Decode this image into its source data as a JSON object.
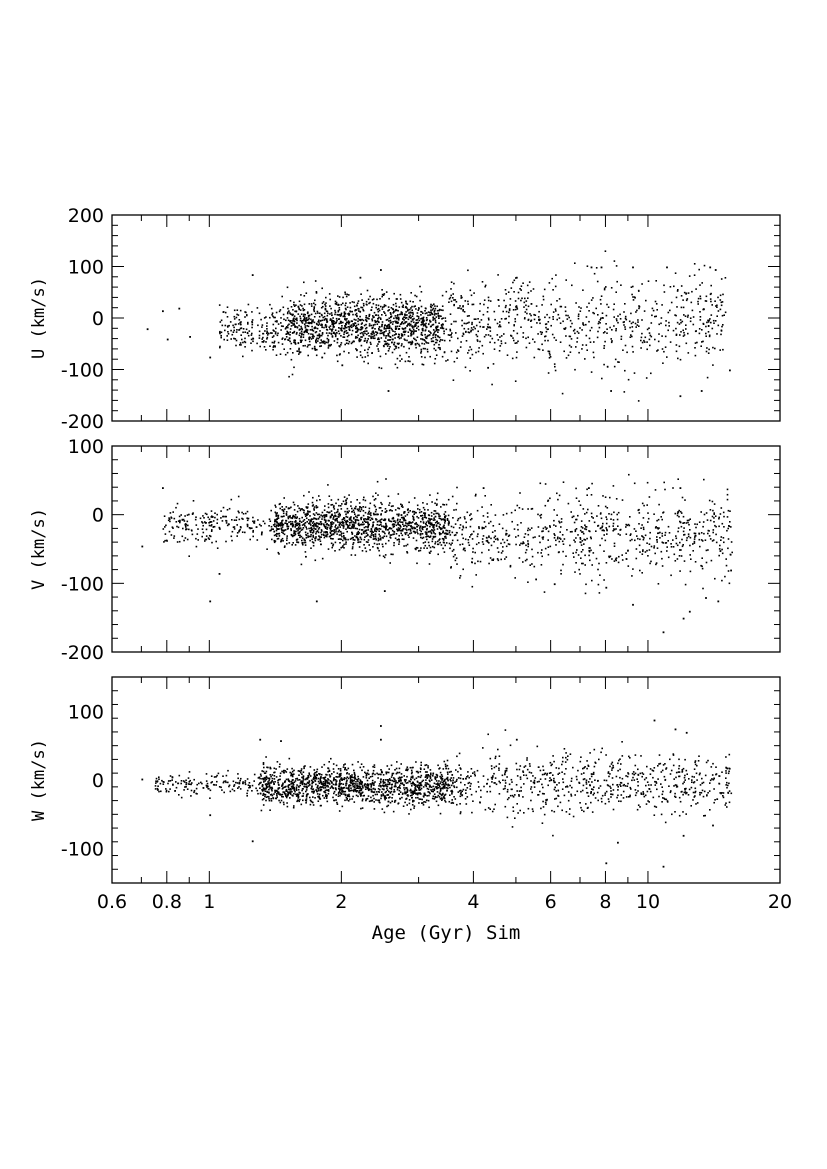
{
  "chart_data": {
    "type": "scatter",
    "xscale": "log",
    "xlabel": "Age (Gyr) Sim",
    "xlim": [
      0.6,
      20
    ],
    "xticks": [
      "0.6",
      "0.8",
      "1",
      "2",
      "4",
      "6",
      "8",
      "10",
      "20"
    ],
    "panels": [
      {
        "ylabel": "U (km/s)",
        "ylim": [
          -200,
          200
        ],
        "yticks": [
          "200",
          "100",
          "0",
          "-100",
          "-200"
        ],
        "clusters": [
          {
            "x_range": [
              1.05,
              1.5
            ],
            "y_mean": -20,
            "y_sd": 22,
            "n": 200
          },
          {
            "x_range": [
              1.5,
              3.4
            ],
            "y_mean": -15,
            "y_sd": 28,
            "n": 1300
          },
          {
            "x_range": [
              3.4,
              15.0
            ],
            "y_mean": -10,
            "y_sd": 45,
            "n": 750
          }
        ],
        "points": [
          [
            0.72,
            -20
          ],
          [
            0.78,
            15
          ],
          [
            0.8,
            -40
          ],
          [
            0.85,
            20
          ],
          [
            0.9,
            -35
          ],
          [
            1.0,
            -75
          ],
          [
            1.25,
            85
          ],
          [
            2.2,
            80
          ],
          [
            2.45,
            95
          ],
          [
            2.55,
            -140
          ],
          [
            5.0,
            80
          ],
          [
            7.4,
            100
          ],
          [
            7.8,
            100
          ],
          [
            9.2,
            100
          ],
          [
            11.0,
            100
          ],
          [
            11.8,
            -150
          ],
          [
            13.8,
            100
          ],
          [
            14.2,
            95
          ],
          [
            13.2,
            -140
          ],
          [
            15.3,
            -100
          ],
          [
            8.2,
            -140
          ],
          [
            4.3,
            -95
          ],
          [
            2.0,
            -90
          ],
          [
            1.8,
            -75
          ]
        ]
      },
      {
        "ylabel": "V (km/s)",
        "ylim": [
          -200,
          100
        ],
        "yticks": [
          "100",
          "0",
          "-100",
          "-200"
        ],
        "clusters": [
          {
            "x_range": [
              0.78,
              1.4
            ],
            "y_mean": -12,
            "y_sd": 14,
            "n": 220
          },
          {
            "x_range": [
              1.4,
              3.5
            ],
            "y_mean": -15,
            "y_sd": 18,
            "n": 1350
          },
          {
            "x_range": [
              3.5,
              15.5
            ],
            "y_mean": -30,
            "y_sd": 30,
            "n": 750
          }
        ],
        "points": [
          [
            0.7,
            -45
          ],
          [
            0.78,
            40
          ],
          [
            1.0,
            -125
          ],
          [
            1.05,
            -85
          ],
          [
            1.75,
            -125
          ],
          [
            2.5,
            -110
          ],
          [
            4.2,
            40
          ],
          [
            7.3,
            40
          ],
          [
            9.2,
            -130
          ],
          [
            10.8,
            -170
          ],
          [
            12.4,
            -140
          ],
          [
            13.5,
            -120
          ],
          [
            11.8,
            40
          ],
          [
            8.0,
            -105
          ],
          [
            6.1,
            -100
          ],
          [
            14.4,
            -125
          ],
          [
            15.4,
            -80
          ],
          [
            12.0,
            -150
          ]
        ]
      },
      {
        "ylabel": "W (km/s)",
        "ylim": [
          -150,
          150
        ],
        "yticks": [
          "100",
          "0",
          "-100"
        ],
        "clusters": [
          {
            "x_range": [
              0.75,
              1.3
            ],
            "y_mean": -5,
            "y_sd": 8,
            "n": 160
          },
          {
            "x_range": [
              1.3,
              3.6
            ],
            "y_mean": -7,
            "y_sd": 14,
            "n": 1400
          },
          {
            "x_range": [
              3.6,
              15.5
            ],
            "y_mean": -5,
            "y_sd": 22,
            "n": 700
          }
        ],
        "points": [
          [
            0.7,
            2
          ],
          [
            1.0,
            -50
          ],
          [
            1.25,
            -88
          ],
          [
            1.3,
            60
          ],
          [
            1.45,
            58
          ],
          [
            2.45,
            80
          ],
          [
            2.45,
            60
          ],
          [
            10.3,
            88
          ],
          [
            11.5,
            75
          ],
          [
            12.2,
            70
          ],
          [
            8.0,
            -120
          ],
          [
            8.5,
            -90
          ],
          [
            10.8,
            -125
          ],
          [
            12.0,
            -80
          ],
          [
            14.0,
            -65
          ],
          [
            15.1,
            18
          ],
          [
            5.0,
            60
          ]
        ]
      }
    ]
  }
}
